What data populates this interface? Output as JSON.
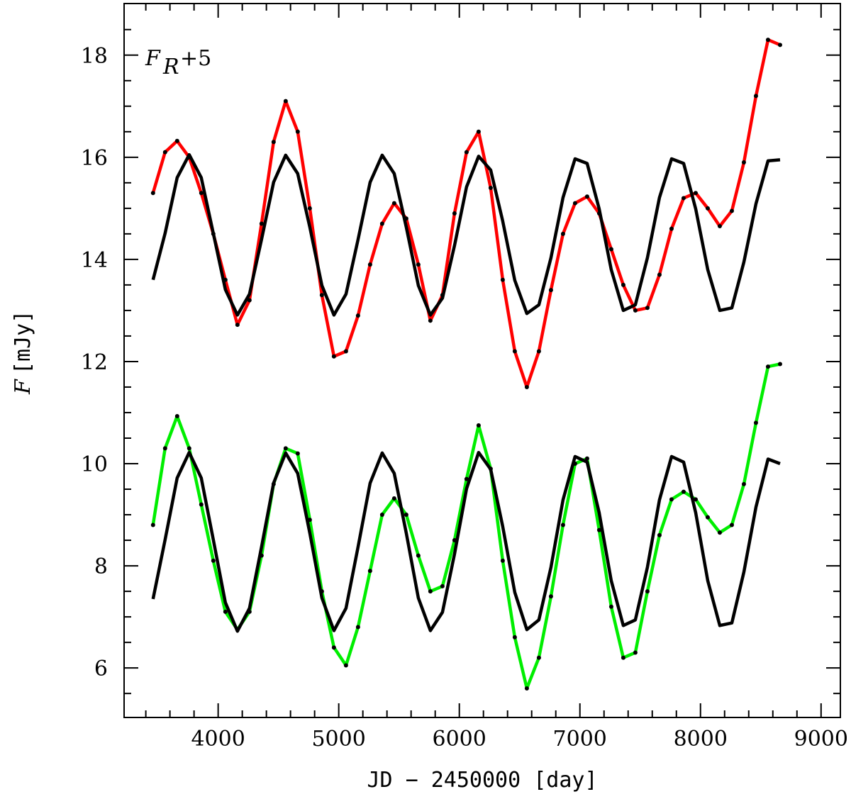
{
  "chart_data": {
    "type": "line",
    "xlabel": "JD − 2450000 [day]",
    "ylabel": {
      "symbol": "F",
      "unit": "[mJy]"
    },
    "annotation": {
      "symbol": "F",
      "subscript": "R",
      "suffix": "+5"
    },
    "xlim": [
      3220,
      9160
    ],
    "ylim": [
      5.03,
      19.01
    ],
    "xticks": [
      4000,
      5000,
      6000,
      7000,
      8000,
      9000
    ],
    "xticks_minor": [
      3400,
      3600,
      3800,
      4200,
      4400,
      4600,
      4800,
      5200,
      5400,
      5600,
      5800,
      6200,
      6400,
      6600,
      6800,
      7200,
      7400,
      7600,
      7800,
      8200,
      8400,
      8600,
      8800
    ],
    "yticks": [
      6,
      8,
      10,
      12,
      14,
      16,
      18
    ],
    "yticks_minor": [
      5.5,
      6.5,
      7,
      7.5,
      8.5,
      9,
      9.5,
      10.5,
      11,
      11.5,
      12.5,
      13,
      13.5,
      14.5,
      15,
      15.5,
      16.5,
      17,
      17.5,
      18.5
    ],
    "x": [
      3460,
      3560,
      3660,
      3760,
      3860,
      3960,
      4060,
      4160,
      4260,
      4360,
      4460,
      4560,
      4660,
      4760,
      4860,
      4960,
      5060,
      5160,
      5260,
      5360,
      5460,
      5560,
      5660,
      5760,
      5860,
      5960,
      6060,
      6160,
      6260,
      6360,
      6460,
      6560,
      6660,
      6760,
      6860,
      6960,
      7060,
      7160,
      7260,
      7360,
      7460,
      7560,
      7660,
      7760,
      7860,
      7960,
      8060,
      8160,
      8260,
      8360,
      8460,
      8560,
      8660
    ],
    "series": [
      {
        "color": "#000000",
        "markers": false,
        "values": [
          13.6,
          14.51,
          15.6,
          16.05,
          15.6,
          14.51,
          13.41,
          12.91,
          13.32,
          14.39,
          15.51,
          16.04,
          15.68,
          14.63,
          13.49,
          12.91,
          13.32,
          14.39,
          15.51,
          16.04,
          15.68,
          14.63,
          13.49,
          12.91,
          13.24,
          14.27,
          15.42,
          16.02,
          15.75,
          14.75,
          13.59,
          12.94,
          13.11,
          14.03,
          15.21,
          15.97,
          15.88,
          14.99,
          13.8,
          13.0,
          13.11,
          14.03,
          15.21,
          15.97,
          15.88,
          14.99,
          13.8,
          13.0,
          13.05,
          13.95,
          15.09,
          15.93,
          15.95
        ]
      },
      {
        "color": "#000000",
        "markers": false,
        "values": [
          7.35,
          8.51,
          9.72,
          10.22,
          9.72,
          8.51,
          7.28,
          6.72,
          7.17,
          8.37,
          9.62,
          10.21,
          9.81,
          8.64,
          7.37,
          6.73,
          7.17,
          8.37,
          9.62,
          10.21,
          9.81,
          8.64,
          7.37,
          6.73,
          7.09,
          8.23,
          9.51,
          10.22,
          9.89,
          8.77,
          7.48,
          6.75,
          6.94,
          7.97,
          9.29,
          10.14,
          10.03,
          9.04,
          7.71,
          6.83,
          6.94,
          7.97,
          9.29,
          10.14,
          10.03,
          9.04,
          7.71,
          6.83,
          6.88,
          7.88,
          9.15,
          10.09,
          10.0
        ]
      },
      {
        "color": "#ff0000",
        "markers": true,
        "values": [
          15.3,
          16.1,
          16.32,
          16.0,
          15.3,
          14.5,
          13.6,
          12.72,
          13.2,
          14.7,
          16.3,
          17.1,
          16.5,
          15.0,
          13.3,
          12.1,
          12.2,
          12.9,
          13.9,
          14.7,
          15.1,
          14.8,
          13.9,
          12.8,
          13.3,
          14.9,
          16.1,
          16.5,
          15.4,
          13.6,
          12.2,
          11.5,
          12.2,
          13.4,
          14.5,
          15.1,
          15.23,
          14.9,
          14.2,
          13.5,
          13.0,
          13.05,
          13.7,
          14.6,
          15.2,
          15.3,
          15.0,
          14.65,
          14.95,
          15.9,
          17.2,
          18.3,
          18.2
        ]
      },
      {
        "color": "#00ee00",
        "markers": true,
        "values": [
          8.8,
          10.3,
          10.93,
          10.3,
          9.2,
          8.1,
          7.1,
          6.75,
          7.1,
          8.2,
          9.6,
          10.3,
          10.2,
          8.9,
          7.5,
          6.4,
          6.05,
          6.8,
          7.9,
          9.0,
          9.32,
          9.0,
          8.2,
          7.5,
          7.6,
          8.5,
          9.7,
          10.75,
          9.9,
          8.1,
          6.6,
          5.6,
          6.2,
          7.4,
          8.8,
          10.0,
          10.1,
          8.7,
          7.2,
          6.2,
          6.3,
          7.5,
          8.6,
          9.3,
          9.45,
          9.3,
          8.95,
          8.65,
          8.8,
          9.6,
          10.8,
          11.9,
          11.95
        ]
      }
    ]
  }
}
